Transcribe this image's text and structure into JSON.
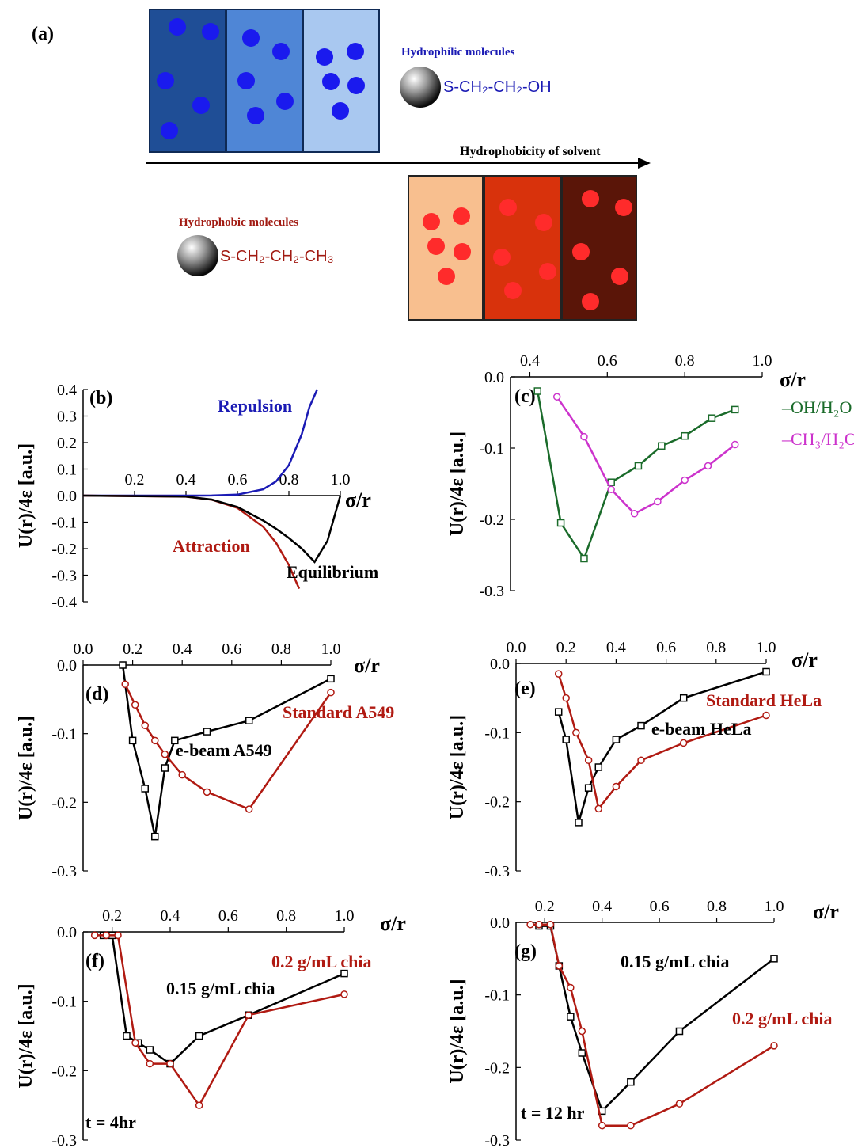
{
  "schematic": {
    "panel_label": "(a)",
    "hydrophilic_label": "Hydrophilic molecules",
    "hydrophilic_formula": "S-CH₂-CH₂-OH",
    "hydrophobic_label": "Hydrophobic molecules",
    "hydrophobic_formula": "S-CH₂-CH₂-CH₃",
    "arrow_label": "Hydrophobicity of solvent",
    "colors": {
      "blue_boxes": [
        "#1f4e96",
        "#4f86d6",
        "#a9c8f0"
      ],
      "blue_dot": "#1a1aee",
      "red_boxes": [
        "#f8bf8f",
        "#d8320c",
        "#5a1508"
      ],
      "red_dot": "#ff2b2b",
      "hydrophilic_text": "#1a1ab4",
      "hydrophobic_text": "#a11a12"
    }
  },
  "chart_data": [
    {
      "id": "b",
      "type": "line",
      "panel_label": "(b)",
      "xlabel": "σ/r",
      "ylabel": "U(r)/4ε [a.u.]",
      "xlim": [
        0,
        1.0
      ],
      "ylim": [
        -0.4,
        0.4
      ],
      "xticks": [
        "0.2",
        "0.4",
        "0.6",
        "0.8",
        "1.0"
      ],
      "yticks": [
        "0.4",
        "0.3",
        "0.2",
        "0.1",
        "0.0",
        "-0.1",
        "-0.2",
        "-0.3",
        "-0.4"
      ],
      "annotations": [
        "Repulsion",
        "Attraction",
        "Equilibrium"
      ],
      "series": [
        {
          "name": "Repulsion",
          "color": "#1a1ab4",
          "x": [
            0,
            0.4,
            0.5,
            0.6,
            0.7,
            0.75,
            0.8,
            0.85,
            0.88,
            0.91
          ],
          "y": [
            0,
            0,
            0.0002,
            0.0036,
            0.0235,
            0.0535,
            0.115,
            0.2316,
            0.3342,
            0.4
          ]
        },
        {
          "name": "Attraction",
          "color": "#b01a12",
          "x": [
            0,
            0.4,
            0.5,
            0.6,
            0.7,
            0.75,
            0.8,
            0.84
          ],
          "y": [
            0,
            -0.0041,
            -0.0156,
            -0.0467,
            -0.1176,
            -0.178,
            -0.262,
            -0.351
          ]
        },
        {
          "name": "Equilibrium",
          "color": "#000000",
          "x": [
            0,
            0.4,
            0.5,
            0.6,
            0.7,
            0.75,
            0.8,
            0.85,
            0.9,
            0.95,
            1.0
          ],
          "y": [
            0,
            -0.004,
            -0.015,
            -0.043,
            -0.094,
            -0.125,
            -0.16,
            -0.2,
            -0.25,
            -0.17,
            0
          ]
        }
      ]
    },
    {
      "id": "c",
      "type": "line",
      "panel_label": "(c)",
      "xlabel": "σ/r",
      "ylabel": "U(r)/4ε [a.u.]",
      "xlim": [
        0.35,
        1.0
      ],
      "ylim": [
        -0.3,
        0.0
      ],
      "xticks": [
        "0.4",
        "0.6",
        "0.8",
        "1.0"
      ],
      "yticks": [
        "0.0",
        "-0.1",
        "-0.2",
        "-0.3"
      ],
      "legend": [
        "–OH/H₂O",
        "–CH₃/H₂O"
      ],
      "series": [
        {
          "name": "–OH/H₂O",
          "color": "#1a6b2a",
          "marker": "square",
          "x": [
            0.42,
            0.48,
            0.54,
            0.61,
            0.68,
            0.74,
            0.8,
            0.87,
            0.93
          ],
          "y": [
            -0.02,
            -0.205,
            -0.255,
            -0.148,
            -0.125,
            -0.097,
            -0.083,
            -0.058,
            -0.046
          ]
        },
        {
          "name": "–CH₃/H₂O",
          "color": "#cc33cc",
          "marker": "circle",
          "x": [
            0.47,
            0.54,
            0.61,
            0.67,
            0.73,
            0.8,
            0.86,
            0.93
          ],
          "y": [
            -0.028,
            -0.084,
            -0.158,
            -0.192,
            -0.175,
            -0.145,
            -0.125,
            -0.095
          ]
        }
      ]
    },
    {
      "id": "d",
      "type": "line",
      "panel_label": "(d)",
      "xlabel": "σ/r",
      "ylabel": "U(r)/4ε [a.u.]",
      "xlim": [
        0.0,
        1.0
      ],
      "ylim": [
        -0.3,
        0.0
      ],
      "xticks": [
        "0.0",
        "0.2",
        "0.4",
        "0.6",
        "0.8",
        "1.0"
      ],
      "yticks": [
        "0.0",
        "-0.1",
        "-0.2",
        "-0.3"
      ],
      "annotations": [
        "Standard A549",
        "e-beam A549"
      ],
      "series": [
        {
          "name": "e-beam A549",
          "color": "#000000",
          "marker": "square",
          "x": [
            0.16,
            0.2,
            0.25,
            0.29,
            0.33,
            0.37,
            0.5,
            0.67,
            1.0
          ],
          "y": [
            0.0,
            -0.11,
            -0.18,
            -0.25,
            -0.15,
            -0.11,
            -0.097,
            -0.081,
            -0.02
          ]
        },
        {
          "name": "Standard A549",
          "color": "#b01a12",
          "marker": "circle",
          "x": [
            0.17,
            0.21,
            0.25,
            0.29,
            0.33,
            0.4,
            0.5,
            0.67,
            1.0
          ],
          "y": [
            -0.028,
            -0.058,
            -0.088,
            -0.11,
            -0.13,
            -0.16,
            -0.185,
            -0.21,
            -0.04
          ]
        }
      ]
    },
    {
      "id": "e",
      "type": "line",
      "panel_label": "(e)",
      "xlabel": "σ/r",
      "ylabel": "U(r)/4ε [a.u.]",
      "xlim": [
        0.0,
        1.0
      ],
      "ylim": [
        -0.3,
        0.0
      ],
      "xticks": [
        "0.0",
        "0.2",
        "0.4",
        "0.6",
        "0.8",
        "1.0"
      ],
      "yticks": [
        "0.0",
        "-0.1",
        "-0.2",
        "-0.3"
      ],
      "annotations": [
        "Standard HeLa",
        "e-beam HeLa"
      ],
      "series": [
        {
          "name": "e-beam HeLa",
          "color": "#000000",
          "marker": "square",
          "x": [
            0.17,
            0.2,
            0.25,
            0.29,
            0.33,
            0.4,
            0.5,
            0.67,
            1.0
          ],
          "y": [
            -0.07,
            -0.11,
            -0.23,
            -0.18,
            -0.15,
            -0.11,
            -0.09,
            -0.05,
            -0.012
          ]
        },
        {
          "name": "Standard HeLa",
          "color": "#b01a12",
          "marker": "circle",
          "x": [
            0.17,
            0.2,
            0.24,
            0.29,
            0.33,
            0.4,
            0.5,
            0.67,
            1.0
          ],
          "y": [
            -0.015,
            -0.05,
            -0.1,
            -0.14,
            -0.21,
            -0.178,
            -0.14,
            -0.115,
            -0.075
          ]
        }
      ]
    },
    {
      "id": "f",
      "type": "line",
      "panel_label": "(f)",
      "xlabel": "σ/r",
      "ylabel": "U(r)/4ε [a.u.]",
      "xlim": [
        0.1,
        1.0
      ],
      "ylim": [
        -0.3,
        0.0
      ],
      "xticks": [
        "0.2",
        "0.4",
        "0.6",
        "0.8",
        "1.0"
      ],
      "yticks": [
        "0.0",
        "-0.1",
        "-0.2",
        "-0.3"
      ],
      "annotations": [
        "0.2 g/mL chia",
        "0.15 g/mL chia",
        "t = 4hr"
      ],
      "series": [
        {
          "name": "0.15 g/mL chia",
          "color": "#000000",
          "marker": "square",
          "x": [
            0.17,
            0.2,
            0.25,
            0.29,
            0.33,
            0.4,
            0.5,
            0.67,
            1.0
          ],
          "y": [
            -0.005,
            -0.005,
            -0.15,
            -0.16,
            -0.17,
            -0.19,
            -0.15,
            -0.12,
            -0.06
          ]
        },
        {
          "name": "0.2 g/mL chia",
          "color": "#b01a12",
          "marker": "circle",
          "x": [
            0.14,
            0.18,
            0.22,
            0.28,
            0.33,
            0.4,
            0.5,
            0.67,
            1.0
          ],
          "y": [
            -0.005,
            -0.005,
            -0.005,
            -0.16,
            -0.19,
            -0.19,
            -0.25,
            -0.12,
            -0.09
          ]
        }
      ]
    },
    {
      "id": "g",
      "type": "line",
      "panel_label": "(g)",
      "xlabel": "σ/r",
      "ylabel": "U(r)/4ε [a.u.]",
      "xlim": [
        0.1,
        1.0
      ],
      "ylim": [
        -0.3,
        0.0
      ],
      "xticks": [
        "0.2",
        "0.4",
        "0.6",
        "0.8",
        "1.0"
      ],
      "yticks": [
        "0.0",
        "-0.1",
        "-0.2",
        "-0.3"
      ],
      "annotations": [
        "0.15 g/mL chia",
        "0.2 g/mL chia",
        "t = 12 hr"
      ],
      "series": [
        {
          "name": "0.15 g/mL chia",
          "color": "#000000",
          "marker": "square",
          "x": [
            0.18,
            0.22,
            0.25,
            0.29,
            0.33,
            0.4,
            0.5,
            0.67,
            1.0
          ],
          "y": [
            -0.005,
            -0.005,
            -0.06,
            -0.13,
            -0.18,
            -0.26,
            -0.22,
            -0.15,
            -0.05
          ]
        },
        {
          "name": "0.2 g/mL chia",
          "color": "#b01a12",
          "marker": "circle",
          "x": [
            0.15,
            0.18,
            0.22,
            0.25,
            0.29,
            0.33,
            0.4,
            0.5,
            0.67,
            1.0
          ],
          "y": [
            -0.003,
            -0.003,
            -0.003,
            -0.06,
            -0.09,
            -0.15,
            -0.28,
            -0.28,
            -0.25,
            -0.17
          ]
        }
      ]
    }
  ]
}
